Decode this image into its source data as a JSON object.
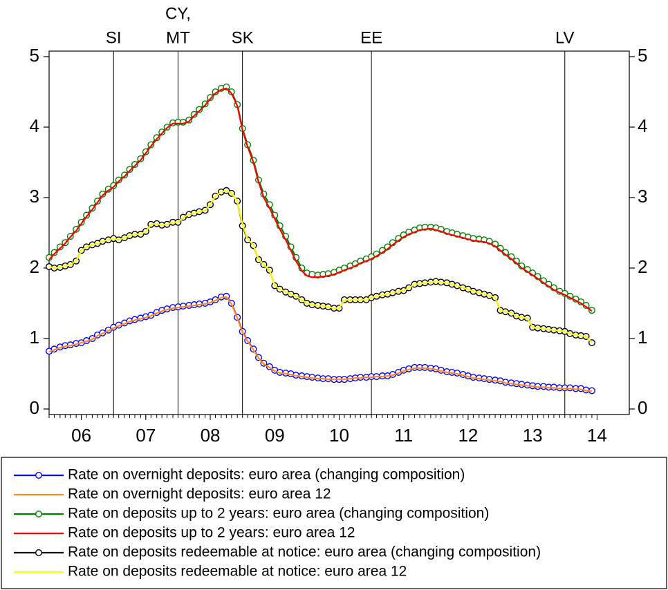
{
  "chart_data": {
    "type": "line",
    "x": [
      2006,
      2006.08,
      2006.17,
      2006.25,
      2006.33,
      2006.42,
      2006.5,
      2006.58,
      2006.67,
      2006.75,
      2006.83,
      2006.92,
      2007,
      2007.08,
      2007.17,
      2007.25,
      2007.33,
      2007.42,
      2007.5,
      2007.58,
      2007.67,
      2007.75,
      2007.83,
      2007.92,
      2008,
      2008.08,
      2008.17,
      2008.25,
      2008.33,
      2008.42,
      2008.5,
      2008.58,
      2008.67,
      2008.75,
      2008.83,
      2008.92,
      2009,
      2009.08,
      2009.17,
      2009.25,
      2009.33,
      2009.42,
      2009.5,
      2009.58,
      2009.67,
      2009.75,
      2009.83,
      2009.92,
      2010,
      2010.08,
      2010.17,
      2010.25,
      2010.33,
      2010.42,
      2010.5,
      2010.58,
      2010.67,
      2010.75,
      2010.83,
      2010.92,
      2011,
      2011.08,
      2011.17,
      2011.25,
      2011.33,
      2011.42,
      2011.5,
      2011.58,
      2011.67,
      2011.75,
      2011.83,
      2011.92,
      2012,
      2012.08,
      2012.17,
      2012.25,
      2012.33,
      2012.42,
      2012.5,
      2012.58,
      2012.67,
      2012.75,
      2012.83,
      2012.92,
      2013,
      2013.08,
      2013.17,
      2013.25,
      2013.33,
      2013.42,
      2013.5,
      2013.58,
      2013.67,
      2013.75,
      2013.83,
      2013.92,
      2014,
      2014.08,
      2014.17,
      2014.25,
      2014.33,
      2014.42
    ],
    "series": [
      {
        "name": "Rate on overnight deposits: euro area (changing composition)",
        "color": "#0000ff",
        "marker": true,
        "values": [
          0.82,
          0.85,
          0.88,
          0.9,
          0.91,
          0.93,
          0.94,
          0.97,
          1.0,
          1.05,
          1.08,
          1.12,
          1.16,
          1.19,
          1.22,
          1.25,
          1.27,
          1.29,
          1.31,
          1.33,
          1.37,
          1.4,
          1.42,
          1.44,
          1.45,
          1.46,
          1.47,
          1.48,
          1.49,
          1.5,
          1.52,
          1.55,
          1.59,
          1.6,
          1.5,
          1.3,
          1.1,
          0.97,
          0.85,
          0.73,
          0.65,
          0.6,
          0.55,
          0.52,
          0.51,
          0.5,
          0.48,
          0.47,
          0.46,
          0.45,
          0.44,
          0.43,
          0.43,
          0.42,
          0.42,
          0.42,
          0.43,
          0.44,
          0.45,
          0.45,
          0.46,
          0.46,
          0.47,
          0.47,
          0.49,
          0.52,
          0.55,
          0.57,
          0.59,
          0.59,
          0.59,
          0.58,
          0.57,
          0.55,
          0.53,
          0.52,
          0.51,
          0.49,
          0.47,
          0.45,
          0.44,
          0.43,
          0.42,
          0.41,
          0.4,
          0.38,
          0.37,
          0.36,
          0.35,
          0.34,
          0.33,
          0.32,
          0.32,
          0.31,
          0.31,
          0.3,
          0.3,
          0.3,
          0.29,
          0.29,
          0.27,
          0.26
        ]
      },
      {
        "name": "Rate on overnight deposits: euro area 12",
        "color": "#ff8c1a",
        "marker": false,
        "values": [
          0.81,
          0.84,
          0.87,
          0.89,
          0.9,
          0.92,
          0.94,
          0.96,
          0.99,
          1.04,
          1.07,
          1.11,
          1.15,
          1.18,
          1.21,
          1.24,
          1.26,
          1.28,
          1.3,
          1.32,
          1.36,
          1.39,
          1.41,
          1.43,
          1.44,
          1.45,
          1.46,
          1.47,
          1.48,
          1.49,
          1.51,
          1.54,
          1.58,
          1.59,
          1.49,
          1.29,
          1.09,
          0.96,
          0.84,
          0.72,
          0.64,
          0.59,
          0.54,
          0.51,
          0.5,
          0.49,
          0.47,
          0.46,
          0.45,
          0.44,
          0.43,
          0.43,
          0.42,
          0.42,
          0.42,
          0.42,
          0.43,
          0.44,
          0.44,
          0.45,
          0.45,
          0.46,
          0.46,
          0.47,
          0.48,
          0.51,
          0.54,
          0.56,
          0.58,
          0.58,
          0.58,
          0.57,
          0.56,
          0.54,
          0.52,
          0.51,
          0.5,
          0.48,
          0.46,
          0.44,
          0.43,
          0.42,
          0.41,
          0.4,
          0.39,
          0.37,
          0.36,
          0.35,
          0.34,
          0.33,
          0.32,
          0.31,
          0.31,
          0.3,
          0.3,
          0.29,
          0.29,
          0.29,
          0.28,
          0.28,
          0.26,
          0.25
        ]
      },
      {
        "name": "Rate on deposits up to 2 years: euro area (changing composition)",
        "color": "#008000",
        "marker": true,
        "values": [
          2.15,
          2.22,
          2.3,
          2.36,
          2.45,
          2.55,
          2.65,
          2.75,
          2.85,
          2.95,
          3.05,
          3.12,
          3.17,
          3.25,
          3.32,
          3.4,
          3.47,
          3.55,
          3.65,
          3.75,
          3.85,
          3.93,
          4.0,
          4.06,
          4.07,
          4.07,
          4.1,
          4.18,
          4.25,
          4.33,
          4.42,
          4.5,
          4.55,
          4.57,
          4.5,
          4.32,
          3.98,
          3.75,
          3.53,
          3.25,
          3.05,
          2.9,
          2.75,
          2.6,
          2.45,
          2.3,
          2.15,
          2.0,
          1.93,
          1.91,
          1.9,
          1.91,
          1.92,
          1.94,
          1.97,
          2.0,
          2.03,
          2.06,
          2.1,
          2.13,
          2.16,
          2.2,
          2.25,
          2.3,
          2.36,
          2.42,
          2.47,
          2.51,
          2.54,
          2.57,
          2.58,
          2.58,
          2.57,
          2.55,
          2.52,
          2.5,
          2.48,
          2.46,
          2.44,
          2.42,
          2.41,
          2.4,
          2.38,
          2.34,
          2.28,
          2.22,
          2.16,
          2.1,
          2.03,
          1.98,
          1.93,
          1.88,
          1.82,
          1.77,
          1.72,
          1.67,
          1.64,
          1.6,
          1.56,
          1.52,
          1.47,
          1.4
        ]
      },
      {
        "name": "Rate on deposits up to 2 years: euro area 12",
        "color": "#ff0000",
        "marker": false,
        "values": [
          2.12,
          2.2,
          2.28,
          2.35,
          2.44,
          2.53,
          2.63,
          2.73,
          2.83,
          2.93,
          3.03,
          3.1,
          3.15,
          3.23,
          3.3,
          3.38,
          3.45,
          3.53,
          3.63,
          3.73,
          3.83,
          3.91,
          3.99,
          4.05,
          4.05,
          4.05,
          4.08,
          4.16,
          4.23,
          4.31,
          4.4,
          4.48,
          4.53,
          4.55,
          4.48,
          4.3,
          3.96,
          3.72,
          3.5,
          3.22,
          3.0,
          2.85,
          2.7,
          2.55,
          2.4,
          2.25,
          2.1,
          1.96,
          1.89,
          1.87,
          1.87,
          1.88,
          1.89,
          1.91,
          1.94,
          1.97,
          2.0,
          2.03,
          2.07,
          2.1,
          2.13,
          2.17,
          2.22,
          2.27,
          2.33,
          2.39,
          2.44,
          2.48,
          2.51,
          2.54,
          2.55,
          2.56,
          2.54,
          2.52,
          2.49,
          2.47,
          2.45,
          2.43,
          2.41,
          2.39,
          2.38,
          2.37,
          2.35,
          2.31,
          2.25,
          2.19,
          2.13,
          2.07,
          2.0,
          1.95,
          1.9,
          1.85,
          1.79,
          1.74,
          1.69,
          1.65,
          1.62,
          1.58,
          1.54,
          1.5,
          1.45,
          1.39
        ]
      },
      {
        "name": "Rate on deposits redeemable at notice: euro area (changing composition)",
        "color": "#000000",
        "marker": true,
        "values": [
          2.02,
          2.0,
          2.01,
          2.03,
          2.05,
          2.1,
          2.25,
          2.3,
          2.33,
          2.35,
          2.38,
          2.4,
          2.42,
          2.4,
          2.43,
          2.46,
          2.48,
          2.48,
          2.52,
          2.62,
          2.63,
          2.61,
          2.62,
          2.65,
          2.65,
          2.72,
          2.76,
          2.78,
          2.8,
          2.82,
          2.9,
          3.02,
          3.08,
          3.1,
          3.06,
          2.95,
          2.6,
          2.4,
          2.32,
          2.12,
          2.05,
          1.97,
          1.75,
          1.7,
          1.66,
          1.63,
          1.6,
          1.55,
          1.5,
          1.48,
          1.47,
          1.46,
          1.45,
          1.43,
          1.43,
          1.55,
          1.55,
          1.55,
          1.55,
          1.55,
          1.58,
          1.6,
          1.62,
          1.63,
          1.65,
          1.67,
          1.68,
          1.72,
          1.77,
          1.78,
          1.79,
          1.8,
          1.81,
          1.8,
          1.79,
          1.77,
          1.75,
          1.72,
          1.7,
          1.67,
          1.65,
          1.63,
          1.61,
          1.58,
          1.4,
          1.38,
          1.36,
          1.32,
          1.3,
          1.29,
          1.16,
          1.15,
          1.14,
          1.13,
          1.12,
          1.11,
          1.1,
          1.07,
          1.05,
          1.04,
          1.03,
          0.94
        ]
      },
      {
        "name": "Rate on deposits redeemable at notice: euro area 12",
        "color": "#ffff00",
        "marker": false,
        "values": [
          2.02,
          2.0,
          2.01,
          2.03,
          2.05,
          2.1,
          2.25,
          2.3,
          2.33,
          2.35,
          2.38,
          2.4,
          2.42,
          2.4,
          2.43,
          2.46,
          2.48,
          2.48,
          2.52,
          2.62,
          2.63,
          2.61,
          2.62,
          2.65,
          2.65,
          2.72,
          2.76,
          2.78,
          2.8,
          2.82,
          2.9,
          3.02,
          3.08,
          3.1,
          3.06,
          2.95,
          2.62,
          2.41,
          2.33,
          2.12,
          2.05,
          1.97,
          1.75,
          1.7,
          1.66,
          1.63,
          1.6,
          1.55,
          1.5,
          1.48,
          1.47,
          1.46,
          1.45,
          1.43,
          1.43,
          1.55,
          1.55,
          1.55,
          1.55,
          1.55,
          1.58,
          1.6,
          1.62,
          1.63,
          1.65,
          1.67,
          1.68,
          1.72,
          1.77,
          1.78,
          1.79,
          1.8,
          1.81,
          1.8,
          1.79,
          1.77,
          1.75,
          1.72,
          1.7,
          1.67,
          1.65,
          1.63,
          1.61,
          1.58,
          1.4,
          1.38,
          1.36,
          1.32,
          1.3,
          1.29,
          1.16,
          1.15,
          1.14,
          1.13,
          1.12,
          1.11,
          1.1,
          1.07,
          1.05,
          1.04,
          1.03,
          0.94
        ]
      }
    ],
    "xlim": [
      2006,
      2015
    ],
    "xticks": [
      {
        "value": 2006.5,
        "label": "06"
      },
      {
        "value": 2007.5,
        "label": "07"
      },
      {
        "value": 2008.5,
        "label": "08"
      },
      {
        "value": 2009.5,
        "label": "09"
      },
      {
        "value": 2010.5,
        "label": "10"
      },
      {
        "value": 2011.5,
        "label": "11"
      },
      {
        "value": 2012.5,
        "label": "12"
      },
      {
        "value": 2013.5,
        "label": "13"
      },
      {
        "value": 2014.5,
        "label": "14"
      }
    ],
    "ylim": [
      0,
      5
    ],
    "yticks": [
      0,
      1,
      2,
      3,
      4,
      5
    ],
    "y2lim": [
      0,
      5
    ],
    "y2ticks": [
      0,
      1,
      2,
      3,
      4,
      5
    ],
    "annotations": [
      {
        "x": 2007,
        "label": [
          "SI"
        ]
      },
      {
        "x": 2008,
        "label": [
          "CY,",
          "MT"
        ]
      },
      {
        "x": 2009,
        "label": [
          "SK"
        ]
      },
      {
        "x": 2011,
        "label": [
          "EE"
        ]
      },
      {
        "x": 2014,
        "label": [
          "LV"
        ]
      }
    ],
    "legend": "bottom"
  }
}
